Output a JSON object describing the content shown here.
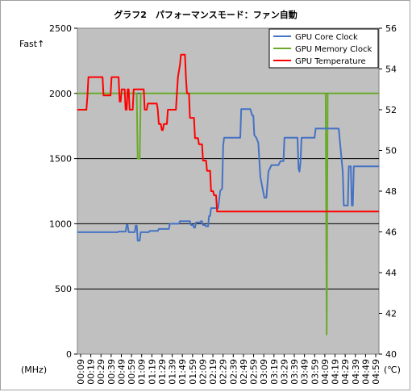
{
  "chart_data": {
    "type": "line",
    "title": "グラフ2　パフォーマンスモード：ファン自動",
    "fast_label": "Fast↑",
    "y_left_unit": "(MHz)",
    "y_right_unit": "(℃)",
    "ylim_left": [
      0,
      2500
    ],
    "ylim_right": [
      40,
      56
    ],
    "yticks_left": [
      "0",
      "500",
      "1000",
      "1500",
      "2000",
      "2500"
    ],
    "yticks_right": [
      "40",
      "42",
      "44",
      "46",
      "48",
      "50",
      "52",
      "54",
      "56"
    ],
    "xticks": [
      "00:09",
      "00:19",
      "00:29",
      "00:39",
      "00:49",
      "00:59",
      "01:09",
      "01:19",
      "01:29",
      "01:39",
      "01:49",
      "01:59",
      "02:09",
      "02:19",
      "02:29",
      "02:39",
      "02:49",
      "02:59",
      "03:09",
      "03:19",
      "03:29",
      "03:39",
      "03:49",
      "03:59",
      "04:09",
      "04:19",
      "04:29",
      "04:39",
      "04:49",
      "04:59"
    ],
    "x_seconds": [
      0,
      300
    ],
    "grid": "horizontal",
    "legend_position": "top-right",
    "colors": {
      "plot_bg": "#c0c0c0",
      "core": "#4472c4",
      "memory": "#6aaa2a",
      "temperature": "#ff0000"
    },
    "series": [
      {
        "name": "GPU Core Clock",
        "axis": "left",
        "color": "#4472c4",
        "points": [
          [
            0,
            935
          ],
          [
            40,
            935
          ],
          [
            41,
            940
          ],
          [
            48,
            940
          ],
          [
            49,
            990
          ],
          [
            50,
            990
          ],
          [
            51,
            935
          ],
          [
            57,
            935
          ],
          [
            58,
            985
          ],
          [
            59,
            985
          ],
          [
            60,
            870
          ],
          [
            62,
            870
          ],
          [
            63,
            935
          ],
          [
            71,
            935
          ],
          [
            72,
            945
          ],
          [
            80,
            945
          ],
          [
            81,
            960
          ],
          [
            91,
            960
          ],
          [
            92,
            1000
          ],
          [
            101,
            1000
          ],
          [
            102,
            1020
          ],
          [
            112,
            1020
          ],
          [
            113,
            990
          ],
          [
            115,
            990
          ],
          [
            116,
            970
          ],
          [
            117,
            970
          ],
          [
            118,
            1010
          ],
          [
            122,
            1010
          ],
          [
            123,
            1020
          ],
          [
            124,
            1020
          ],
          [
            125,
            990
          ],
          [
            127,
            990
          ],
          [
            128,
            980
          ],
          [
            130,
            980
          ],
          [
            131,
            1060
          ],
          [
            132,
            1060
          ],
          [
            133,
            1120
          ],
          [
            140,
            1120
          ],
          [
            141,
            1180
          ],
          [
            142,
            1250
          ],
          [
            144,
            1270
          ],
          [
            145,
            1600
          ],
          [
            146,
            1660
          ],
          [
            162,
            1660
          ],
          [
            163,
            1880
          ],
          [
            172,
            1880
          ],
          [
            174,
            1830
          ],
          [
            175,
            1830
          ],
          [
            176,
            1680
          ],
          [
            178,
            1660
          ],
          [
            180,
            1620
          ],
          [
            182,
            1360
          ],
          [
            186,
            1200
          ],
          [
            188,
            1200
          ],
          [
            190,
            1400
          ],
          [
            193,
            1450
          ],
          [
            200,
            1450
          ],
          [
            202,
            1480
          ],
          [
            205,
            1480
          ],
          [
            206,
            1660
          ],
          [
            219,
            1660
          ],
          [
            220,
            1420
          ],
          [
            221,
            1400
          ],
          [
            222,
            1480
          ],
          [
            223,
            1660
          ],
          [
            236,
            1660
          ],
          [
            237,
            1730
          ],
          [
            260,
            1730
          ],
          [
            264,
            1400
          ],
          [
            265,
            1140
          ],
          [
            269,
            1140
          ],
          [
            270,
            1440
          ],
          [
            272,
            1440
          ],
          [
            273,
            1140
          ],
          [
            274,
            1140
          ],
          [
            275,
            1440
          ],
          [
            300,
            1440
          ]
        ]
      },
      {
        "name": "GPU Memory Clock",
        "axis": "left",
        "color": "#6aaa2a",
        "points": [
          [
            0,
            2000
          ],
          [
            59,
            2000
          ],
          [
            60,
            1500
          ],
          [
            62,
            1500
          ],
          [
            63,
            2000
          ],
          [
            247,
            2000
          ],
          [
            248,
            150
          ],
          [
            249,
            2000
          ],
          [
            300,
            2000
          ]
        ]
      },
      {
        "name": "GPU Temperature",
        "axis": "right",
        "color": "#ff0000",
        "points": [
          [
            0,
            52
          ],
          [
            9,
            52
          ],
          [
            10,
            52.7
          ],
          [
            11,
            53.6
          ],
          [
            25,
            53.6
          ],
          [
            26,
            52.7
          ],
          [
            33,
            52.7
          ],
          [
            34,
            53.6
          ],
          [
            41,
            53.6
          ],
          [
            42,
            52.4
          ],
          [
            43,
            52.4
          ],
          [
            44,
            53
          ],
          [
            47,
            53
          ],
          [
            48,
            52
          ],
          [
            49,
            52
          ],
          [
            50,
            53
          ],
          [
            51,
            53
          ],
          [
            52,
            52
          ],
          [
            55,
            52
          ],
          [
            56,
            53
          ],
          [
            66,
            53
          ],
          [
            67,
            52
          ],
          [
            69,
            52
          ],
          [
            70,
            52.3
          ],
          [
            79,
            52.3
          ],
          [
            80,
            52
          ],
          [
            81,
            51.3
          ],
          [
            83,
            51.3
          ],
          [
            84,
            51
          ],
          [
            85,
            51
          ],
          [
            86,
            51.3
          ],
          [
            89,
            51.3
          ],
          [
            90,
            52
          ],
          [
            98,
            52
          ],
          [
            99,
            52.8
          ],
          [
            100,
            53.6
          ],
          [
            102,
            54.2
          ],
          [
            103,
            54.7
          ],
          [
            107,
            54.7
          ],
          [
            108,
            53.6
          ],
          [
            109,
            52.8
          ],
          [
            111,
            52.8
          ],
          [
            112,
            51.6
          ],
          [
            116,
            51.6
          ],
          [
            117,
            50.6
          ],
          [
            120,
            50.6
          ],
          [
            121,
            50.3
          ],
          [
            124,
            50.3
          ],
          [
            125,
            49.5
          ],
          [
            128,
            49.5
          ],
          [
            129,
            49
          ],
          [
            132,
            49
          ],
          [
            133,
            48
          ],
          [
            135,
            48
          ],
          [
            136,
            47.8
          ],
          [
            138,
            47.8
          ],
          [
            139,
            47
          ],
          [
            300,
            47
          ]
        ]
      }
    ]
  }
}
